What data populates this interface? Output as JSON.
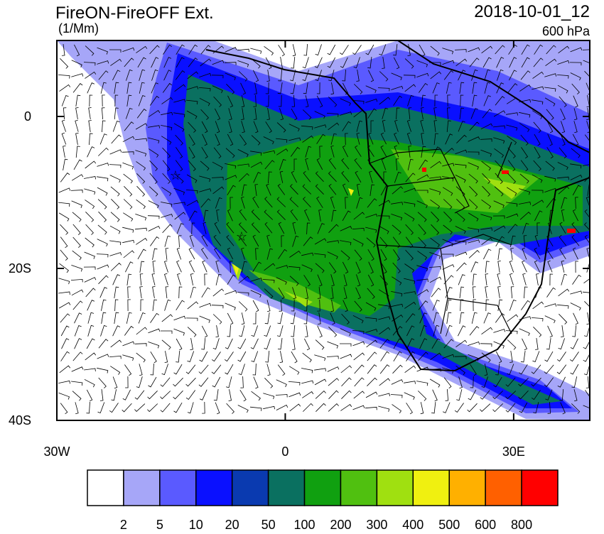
{
  "header": {
    "title": "FireON-FireOFF Ext.",
    "units": "(1/Mm)",
    "date": "2018-10-01_12",
    "level": "600 hPa"
  },
  "map": {
    "xlim": [
      -30,
      40
    ],
    "ylim": [
      -40,
      10
    ],
    "xticks": [
      {
        "value": -30,
        "label": "30W"
      },
      0,
      {
        "value": 30,
        "label": "30E"
      }
    ],
    "yticks": [
      0,
      {
        "value": -20,
        "label": "20S"
      },
      {
        "value": -40,
        "label": "40S"
      }
    ]
  },
  "colorbar": {
    "colors": [
      "#ffffff",
      "#a6a6f8",
      "#5a5aff",
      "#0a10ff",
      "#0a3ab0",
      "#0a7060",
      "#10a010",
      "#50c010",
      "#a0e010",
      "#f0f010",
      "#ffb000",
      "#ff6000",
      "#ff0000"
    ],
    "levels": [
      2,
      5,
      10,
      20,
      50,
      100,
      200,
      300,
      400,
      500,
      600,
      800
    ]
  }
}
